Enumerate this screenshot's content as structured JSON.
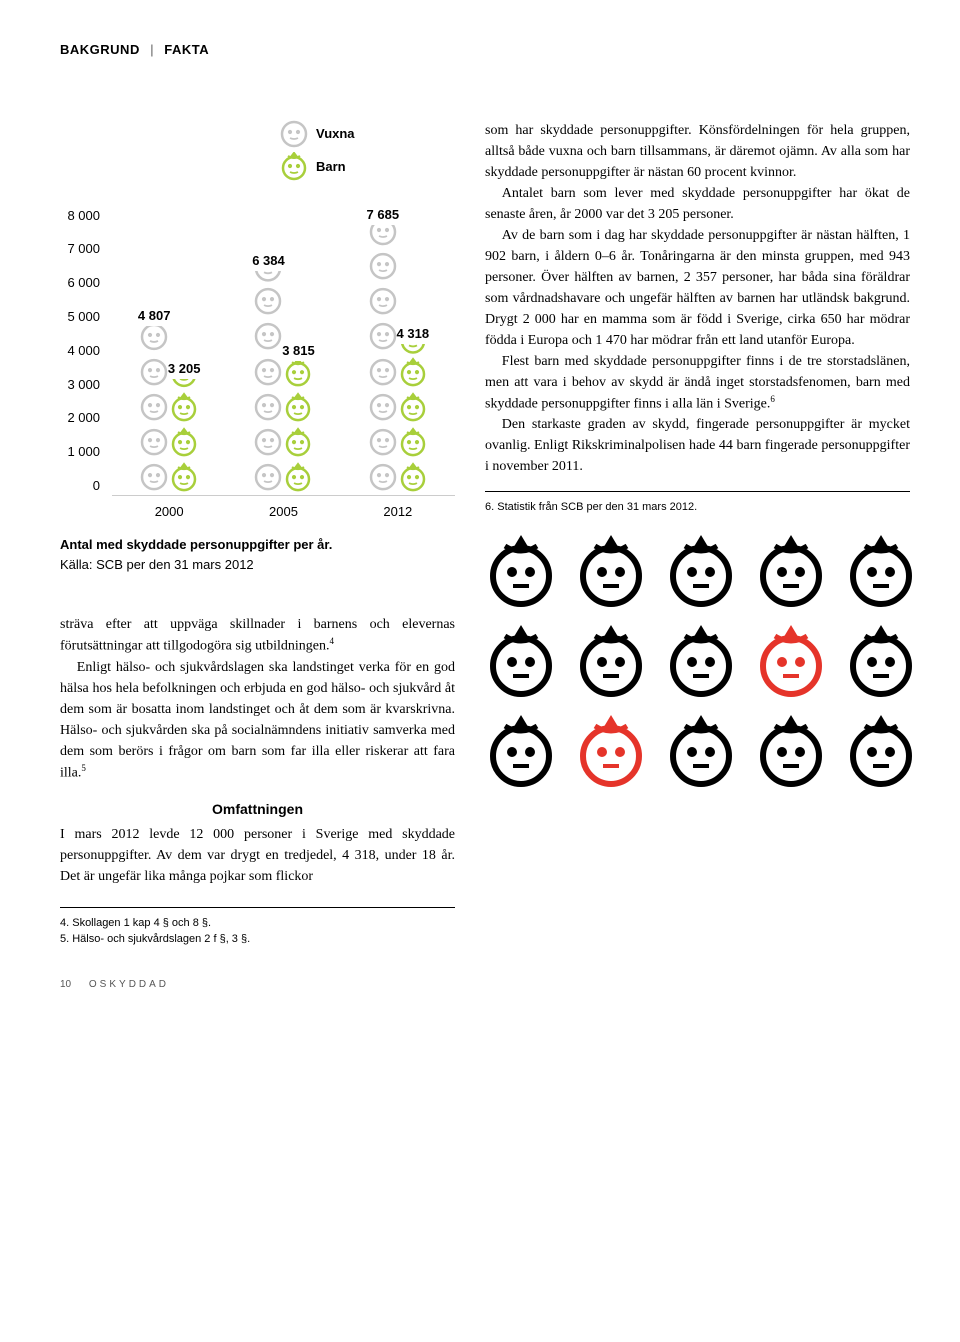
{
  "header": {
    "part1": "BAKGRUND",
    "part2": "FAKTA"
  },
  "legend": {
    "vuxna": "Vuxna",
    "barn": "Barn"
  },
  "chart": {
    "y_max": 8000,
    "y_ticks": [
      "8 000",
      "7 000",
      "6 000",
      "5 000",
      "4 000",
      "3 000",
      "2 000",
      "1 000",
      "0"
    ],
    "unit_per_icon": 1000,
    "years": [
      {
        "year": "2000",
        "vuxna": 4807,
        "vuxna_label": "4 807",
        "barn": 3205,
        "barn_label": "3 205"
      },
      {
        "year": "2005",
        "vuxna": 6384,
        "vuxna_label": "6 384",
        "barn": 3815,
        "barn_label": "3 815"
      },
      {
        "year": "2012",
        "vuxna": 7685,
        "vuxna_label": "7 685",
        "barn": 4318,
        "barn_label": "4 318"
      }
    ],
    "caption_bold": "Antal med skyddade personuppgifter per år.",
    "caption_rest": "Källa: SCB per den 31 mars 2012",
    "colors": {
      "vuxna_stroke": "#c5c5c5",
      "barn_stroke": "#a8cf3b",
      "icon_black": "#000000",
      "icon_red": "#e5342a"
    }
  },
  "left_body": {
    "p1": "sträva efter att uppväga skillnader i barnens och elevernas förutsättningar att tillgodogöra sig utbildningen.",
    "p1_sup": "4",
    "p2": "Enligt hälso- och sjukvårdslagen ska landstinget verka för en god hälsa hos hela befolkningen och erbjuda en god hälso- och sjukvård åt dem som är bosatta inom landstinget och åt dem som är kvarskrivna. Hälso- och sjukvården ska på socialnämndens initiativ samverka med dem som berörs i frågor om barn som far illa eller riskerar att fara illa.",
    "p2_sup": "5",
    "subhead": "Omfattningen",
    "p3": "I mars 2012 levde 12 000 personer i Sverige med skyddade personuppgifter. Av dem var drygt en tredjedel, 4 318, under 18 år. Det är ungefär lika många pojkar som flickor"
  },
  "right_body": {
    "p1": "som har skyddade personuppgifter. Könsfördelningen för hela gruppen, alltså både vuxna och barn tillsammans, är däremot ojämn. Av alla som har skyddade personuppgifter är nästan 60 procent kvinnor.",
    "p2": "Antalet barn som lever med skyddade personuppgifter har ökat de senaste åren, år 2000 var det 3 205 personer.",
    "p3": "Av de barn som i dag har skyddade personuppgifter är nästan hälften, 1 902 barn, i åldern 0–6 år. Tonåringarna är den minsta gruppen, med 943 personer. Över hälften av barnen, 2 357 personer, har båda sina föräldrar som vårdnadshavare och ungefär hälften av barnen har utländsk bakgrund. Drygt 2 000 har en mamma som är född i Sverige, cirka 650 har mödrar födda i Europa och 1 470 har mödrar från ett land utanför Europa.",
    "p4a": "Flest barn med skyddade personuppgifter finns i de tre storstadslänen, men att vara i behov av skydd är ändå inget storstadsfenomen, barn med skyddade personuppgifter finns i alla län i Sverige.",
    "p4_sup": "6",
    "p5": "Den starkaste graden av skydd, fingerade personuppgifter är mycket ovanlig. Enligt Rikskriminalpolisen hade 44 barn fingerade personuppgifter i november 2011."
  },
  "right_footnote": "6. Statistik från SCB per den 31 mars 2012.",
  "left_footnotes": {
    "f4": "4. Skollagen 1 kap 4 § och 8 §.",
    "f5": "5. Hälso- och sjukvårdslagen 2 f §, 3 §."
  },
  "icon_grid": {
    "rows": 3,
    "cols": 5,
    "red_positions": [
      8,
      11
    ]
  },
  "footer": {
    "pagenum": "10",
    "title": "OSKYDDAD"
  }
}
